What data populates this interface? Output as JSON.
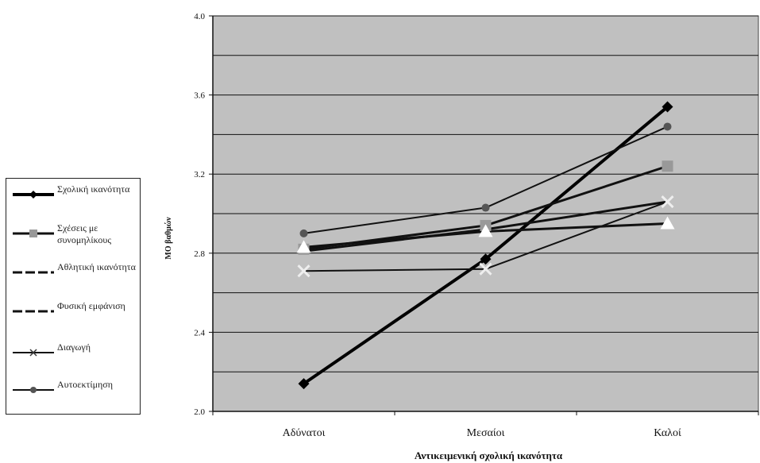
{
  "chart_data": {
    "type": "line",
    "categories": [
      "Αδύνατοι",
      "Μεσαίοι",
      "Καλοί"
    ],
    "xlabel": "Αντικειμενική σχολική ικανότητα",
    "ylabel": "ΜΟ βαθμών",
    "ylim": [
      2.0,
      4.0
    ],
    "yticks": [
      "2.0",
      "2.4",
      "2.8",
      "3.2",
      "3.6",
      "4.0"
    ],
    "grid": true,
    "legend_position": "left",
    "plot_background": "#c0c0c0",
    "series": [
      {
        "name": "Σχολική ικανότητα",
        "values": [
          2.14,
          2.77,
          3.54
        ],
        "marker": "diamond",
        "color": "#000000",
        "width": 4
      },
      {
        "name": "Σχέσεις με συνομηλίκους",
        "values": [
          2.82,
          2.94,
          3.24
        ],
        "marker": "square",
        "color": "#111111",
        "width": 3,
        "marker_color": "#999999"
      },
      {
        "name": "Αθλητική ικανότητα",
        "values": [
          2.83,
          2.91,
          2.95
        ],
        "marker": "triangle",
        "color": "#111111",
        "width": 3,
        "marker_color": "#ffffff"
      },
      {
        "name": "Φυσική εμφάνιση",
        "values": [
          2.81,
          2.92,
          3.06
        ],
        "marker": "none",
        "color": "#111111",
        "width": 3
      },
      {
        "name": "Διαγωγή",
        "values": [
          2.71,
          2.72,
          3.06
        ],
        "marker": "x",
        "color": "#111111",
        "width": 2,
        "marker_color": "#eeeeee"
      },
      {
        "name": "Αυτοεκτίμηση",
        "values": [
          2.9,
          3.03,
          3.44
        ],
        "marker": "circle",
        "color": "#111111",
        "width": 2,
        "marker_color": "#555555"
      }
    ]
  }
}
